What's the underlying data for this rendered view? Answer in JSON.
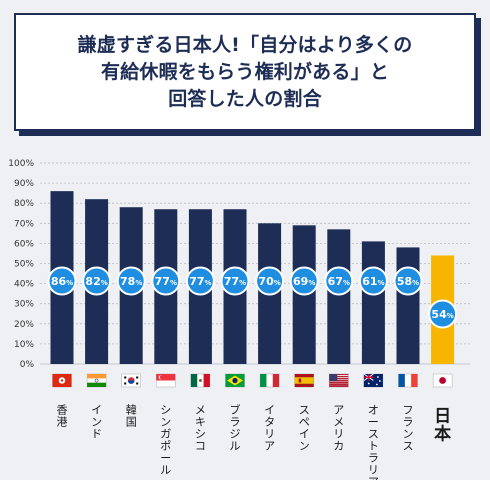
{
  "title": {
    "line1": "謙虚すぎる日本人!「自分はより多くの",
    "line2": "有給休暇をもらう権利がある」と",
    "line3": "回答した人の割合"
  },
  "chart_data": {
    "type": "bar",
    "title": "謙虚すぎる日本人!「自分はより多くの有給休暇をもらう権利がある」と回答した人の割合",
    "categories": [
      "香港",
      "インド",
      "韓国",
      "シンガポール",
      "メキシコ",
      "ブラジル",
      "イタリア",
      "スペイン",
      "アメリカ",
      "オーストラリア",
      "フランス",
      "日本"
    ],
    "values": [
      86,
      82,
      78,
      77,
      77,
      77,
      70,
      69,
      67,
      61,
      58,
      54
    ],
    "value_unit": "%",
    "yticks": [
      "0%",
      "10%",
      "20%",
      "30%",
      "40%",
      "50%",
      "60%",
      "70%",
      "80%",
      "90%",
      "100%"
    ],
    "ylim": [
      0,
      100
    ],
    "grid": true,
    "colors": {
      "bar": "#1d2d55",
      "highlight": "#f7b500",
      "circle": "#1f8de0",
      "title": "#1d2d55"
    },
    "highlight_category": "日本",
    "flags": [
      "flag-hong-kong-icon",
      "flag-india-icon",
      "flag-korea-icon",
      "flag-singapore-icon",
      "flag-mexico-icon",
      "flag-brazil-icon",
      "flag-italy-icon",
      "flag-spain-icon",
      "flag-usa-icon",
      "flag-australia-icon",
      "flag-france-icon",
      "flag-japan-icon"
    ]
  }
}
